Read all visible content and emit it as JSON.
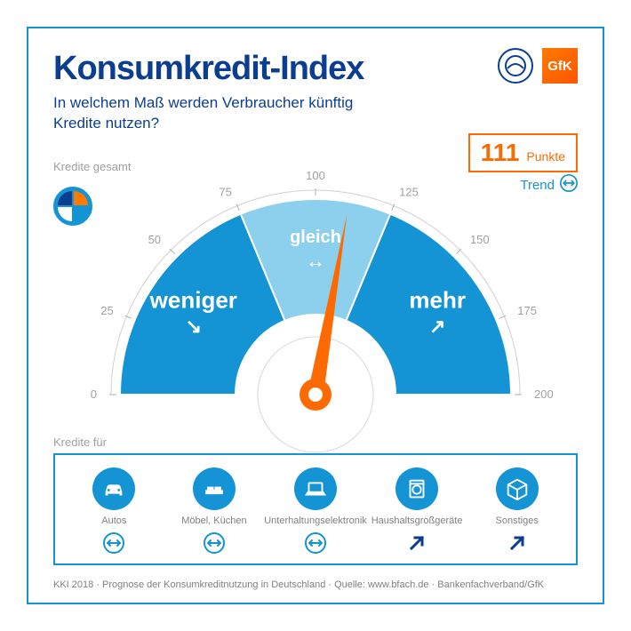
{
  "title": "Konsumkredit-Index",
  "subtitle_l1": "In welchem Maß werden Verbraucher künftig",
  "subtitle_l2": "Kredite nutzen?",
  "colors": {
    "frame_border": "#1494d4",
    "title": "#0b3e91",
    "orange": "#ff6a00",
    "blue": "#1494d4",
    "light_blue": "#8dd0ee",
    "grey": "#a0a0a0",
    "white": "#ffffff"
  },
  "logos": {
    "gfk": "GfK",
    "pie": {
      "tl": "#0b3e91",
      "tr": "#ff7a00",
      "bl": "#ffffff",
      "br": "#1494d4"
    }
  },
  "points": {
    "value": "111",
    "unit": "Punkte"
  },
  "trend": {
    "label": "Trend",
    "direction": "same"
  },
  "kredite_gesamt": "Kredite gesamt",
  "gauge": {
    "type": "gauge",
    "min": 0,
    "max": 200,
    "value": 111,
    "ticks": [
      0,
      25,
      50,
      75,
      100,
      125,
      150,
      175,
      200
    ],
    "segments": [
      {
        "from": 0,
        "to": 75,
        "label": "weniger",
        "sub": "down-right",
        "color": "#1494d4"
      },
      {
        "from": 75,
        "to": 125,
        "label": "gleich",
        "sub": "same",
        "color": "#8dd0ee"
      },
      {
        "from": 125,
        "to": 200,
        "label": "mehr",
        "sub": "up-right",
        "color": "#1494d4"
      }
    ],
    "needle_color": "#ff6a00",
    "outer_r": 220,
    "inner_r": 90
  },
  "kredite_fuer": "Kredite für",
  "categories": [
    {
      "icon": "car",
      "label": "Autos",
      "trend": "same"
    },
    {
      "icon": "sofa",
      "label": "Möbel, Küchen",
      "trend": "same"
    },
    {
      "icon": "laptop",
      "label": "Unterhaltungselektronik",
      "trend": "same"
    },
    {
      "icon": "washer",
      "label": "Haushaltsgroßgeräte",
      "trend": "up"
    },
    {
      "icon": "box",
      "label": "Sonstiges",
      "trend": "up"
    }
  ],
  "footer": "KKI 2018 · Prognose der Konsumkreditnutzung in Deutschland · Quelle: www.bfach.de · Bankenfachverband/GfK"
}
